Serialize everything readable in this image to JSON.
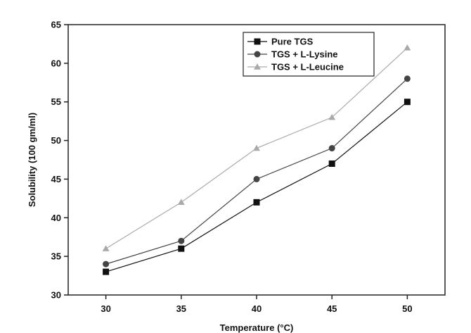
{
  "chart_data": {
    "type": "line",
    "title": "",
    "xlabel": "Temperature (°C)",
    "ylabel": "Solubility (100 gm/ml)",
    "x": [
      30,
      35,
      40,
      45,
      50
    ],
    "xlim": [
      27.5,
      52.5
    ],
    "ylim": [
      30,
      65
    ],
    "xticks": [
      30,
      35,
      40,
      45,
      50
    ],
    "yticks": [
      30,
      35,
      40,
      45,
      50,
      55,
      60,
      65
    ],
    "grid": false,
    "legend_position": "top-right",
    "series": [
      {
        "name": "Pure TGS",
        "values": [
          33,
          36,
          42,
          47,
          55
        ],
        "marker": "square",
        "color": "#111111"
      },
      {
        "name": "TGS + L-Lysine",
        "values": [
          34,
          37,
          45,
          49,
          58
        ],
        "marker": "circle",
        "color": "#444444"
      },
      {
        "name": "TGS + L-Leucine",
        "values": [
          36,
          42,
          49,
          53,
          62
        ],
        "marker": "triangle",
        "color": "#aaaaaa"
      }
    ]
  }
}
